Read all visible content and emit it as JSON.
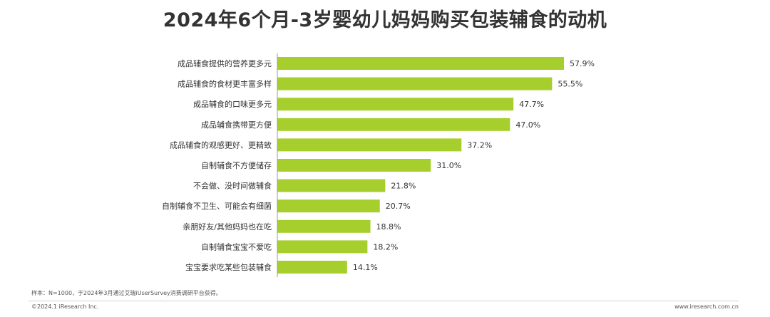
{
  "title": "2024年6个月-3岁婴幼儿妈妈购买包装辅食的动机",
  "colors": {
    "bar": "#a6cf2e",
    "axis": "#999999",
    "text": "#333333"
  },
  "chart_data": {
    "type": "bar",
    "orientation": "horizontal",
    "categories": [
      "成品辅食提供的营养更多元",
      "成品辅食的食材更丰富多样",
      "成品辅食的口味更多元",
      "成品辅食携带更方便",
      "成品辅食的观感更好、更精致",
      "自制辅食不方便储存",
      "不会做、没时间做辅食",
      "自制辅食不卫生、可能会有细菌",
      "亲朋好友/其他妈妈也在吃",
      "自制辅食宝宝不爱吃",
      "宝宝要求吃某些包装辅食"
    ],
    "values": [
      57.9,
      55.5,
      47.7,
      47.0,
      37.2,
      31.0,
      21.8,
      20.7,
      18.8,
      18.2,
      14.1
    ],
    "value_labels": [
      "57.9%",
      "55.5%",
      "47.7%",
      "47.0%",
      "37.2%",
      "31.0%",
      "21.8%",
      "20.7%",
      "18.8%",
      "18.2%",
      "14.1%"
    ],
    "unit": "%",
    "xlim": [
      0,
      57.9
    ],
    "grid": false,
    "legend": "none"
  },
  "footer": {
    "note": "样本：N=1000，于2024年3月通过艾瑞iUserSurvey消费调研平台获得。",
    "copyright": "©2024.1 iResearch Inc.",
    "site": "www.iresearch.com.cn"
  }
}
